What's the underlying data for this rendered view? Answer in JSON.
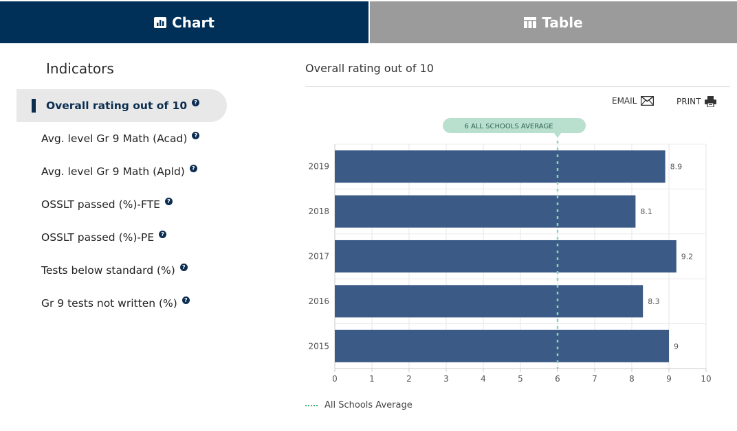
{
  "tabs": {
    "chart": {
      "label": "Chart",
      "icon": "bar-chart-icon"
    },
    "table": {
      "label": "Table",
      "icon": "table-icon"
    }
  },
  "sidebar": {
    "title": "Indicators",
    "items": [
      {
        "label": "Overall rating out of 10",
        "active": true
      },
      {
        "label": "Avg. level Gr 9 Math (Acad)",
        "active": false
      },
      {
        "label": "Avg. level Gr 9 Math (Apld)",
        "active": false
      },
      {
        "label": "OSSLT passed (%)-FTE",
        "active": false
      },
      {
        "label": "OSSLT passed (%)-PE",
        "active": false
      },
      {
        "label": "Tests below standard (%)",
        "active": false
      },
      {
        "label": "Gr 9 tests not written (%)",
        "active": false
      }
    ],
    "help_icon": "?"
  },
  "main": {
    "title": "Overall rating out of 10",
    "email_label": "EMAIL",
    "print_label": "PRINT",
    "legend_label": "All Schools Average"
  },
  "colors": {
    "tab_active": "#003058",
    "tab_inactive": "#9b9b9b",
    "bar": "#3b5a86",
    "average_line": "#8fd0c0",
    "average_badge": "#b9e0cf"
  },
  "chart_data": {
    "type": "bar",
    "orientation": "horizontal",
    "categories": [
      "2019",
      "2018",
      "2017",
      "2016",
      "2015"
    ],
    "values": [
      8.9,
      8.1,
      9.2,
      8.3,
      9
    ],
    "data_labels": [
      "8.9",
      "8.1",
      "9.2",
      "8.3",
      "9"
    ],
    "xlim": [
      0,
      10
    ],
    "xticks": [
      "0",
      "1",
      "2",
      "3",
      "4",
      "5",
      "6",
      "7",
      "8",
      "9",
      "10"
    ],
    "average": 6,
    "average_label": "6 ALL SCHOOLS AVERAGE",
    "grid": true,
    "legend_position": "bottom-left"
  }
}
